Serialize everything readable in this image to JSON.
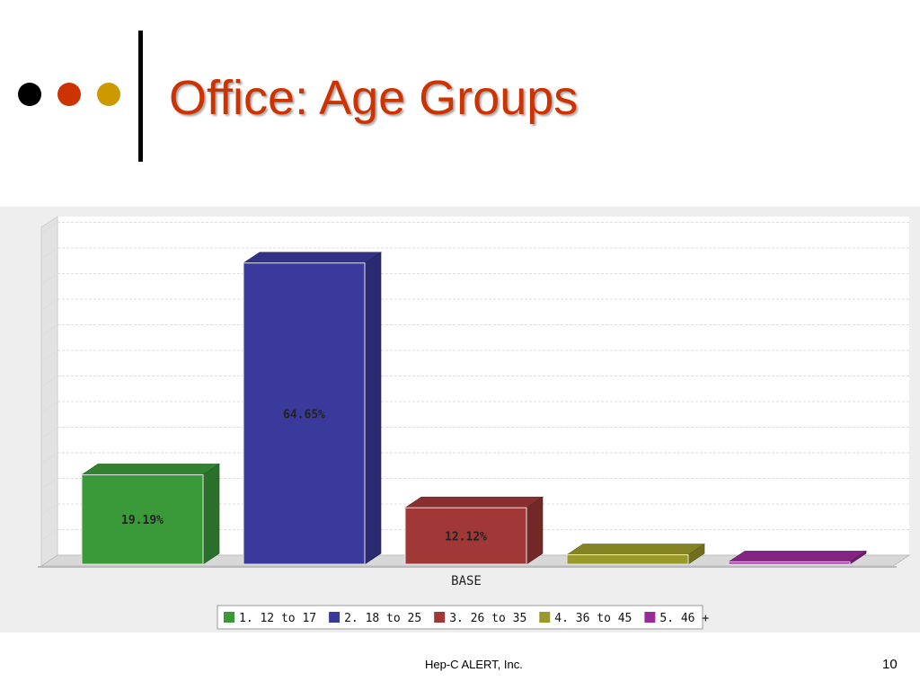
{
  "slide": {
    "title": "Office: Age Groups",
    "footer_text": "Hep-C ALERT, Inc.",
    "page_number": "10",
    "bullet_colors": [
      "#000000",
      "#cc3300",
      "#cc9900"
    ]
  },
  "chart_data": {
    "type": "bar",
    "categories": [
      "BASE"
    ],
    "xlabel": "BASE",
    "ylim": [
      0,
      70
    ],
    "grid": true,
    "legend_position": "bottom",
    "series": [
      {
        "name": "1. 12 to 17",
        "values": [
          19.19
        ],
        "label": "19.19%",
        "color": "#3a9a3a"
      },
      {
        "name": "2. 18 to 25",
        "values": [
          64.65
        ],
        "label": "64.65%",
        "color": "#3a3a9c"
      },
      {
        "name": "3. 26 to 35",
        "values": [
          12.12
        ],
        "label": "12.12%",
        "color": "#a03838"
      },
      {
        "name": "4. 36 to 45",
        "values": [
          2.02
        ],
        "label": "",
        "color": "#9a9a2a"
      },
      {
        "name": "5. 46 +",
        "values": [
          0.5
        ],
        "label": "",
        "color": "#9a2a9a"
      }
    ]
  }
}
